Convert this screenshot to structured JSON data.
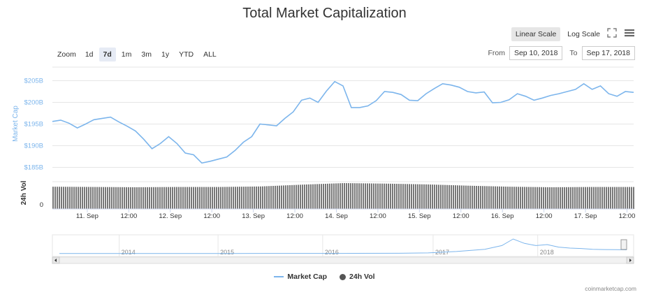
{
  "title": "Total Market Capitalization",
  "toolbar": {
    "linear_label": "Linear Scale",
    "log_label": "Log Scale",
    "fullscreen_icon": "fullscreen-icon",
    "menu_icon": "hamburger-menu-icon"
  },
  "zoom": {
    "label": "Zoom",
    "buttons": [
      "1d",
      "7d",
      "1m",
      "3m",
      "1y",
      "YTD",
      "ALL"
    ],
    "active": "7d"
  },
  "range": {
    "from_label": "From",
    "from_value": "Sep 10, 2018",
    "to_label": "To",
    "to_value": "Sep 17, 2018"
  },
  "chart_data": {
    "type": "line",
    "ylabel": "Market Cap",
    "vol_label": "24h Vol",
    "y_ticks": [
      "$185B",
      "$190B",
      "$195B",
      "$200B",
      "$205B"
    ],
    "y_tick_values": [
      185,
      190,
      195,
      200,
      205
    ],
    "ylim": [
      182.5,
      207.5
    ],
    "vol_tick": "0",
    "x_ticks": [
      "11. Sep",
      "12:00",
      "12. Sep",
      "12:00",
      "13. Sep",
      "12:00",
      "14. Sep",
      "12:00",
      "15. Sep",
      "12:00",
      "16. Sep",
      "12:00",
      "17. Sep",
      "12:00"
    ],
    "xlim": [
      0,
      7.0
    ],
    "x_tick_positions": [
      0.42,
      0.92,
      1.42,
      1.92,
      2.42,
      2.92,
      3.42,
      3.92,
      4.42,
      4.92,
      5.42,
      5.92,
      6.42,
      6.92
    ],
    "series": [
      {
        "name": "Market Cap",
        "color": "#7cb5ec",
        "x": [
          0.0,
          0.1,
          0.2,
          0.3,
          0.4,
          0.5,
          0.6,
          0.7,
          0.8,
          0.9,
          1.0,
          1.1,
          1.2,
          1.3,
          1.4,
          1.5,
          1.6,
          1.7,
          1.8,
          1.9,
          2.0,
          2.1,
          2.2,
          2.3,
          2.4,
          2.5,
          2.6,
          2.7,
          2.8,
          2.9,
          3.0,
          3.1,
          3.2,
          3.3,
          3.4,
          3.5,
          3.6,
          3.7,
          3.8,
          3.9,
          4.0,
          4.1,
          4.2,
          4.3,
          4.4,
          4.5,
          4.6,
          4.7,
          4.8,
          4.9,
          5.0,
          5.1,
          5.2,
          5.3,
          5.4,
          5.5,
          5.6,
          5.7,
          5.8,
          5.9,
          6.0,
          6.1,
          6.2,
          6.3,
          6.4,
          6.5,
          6.6,
          6.7,
          6.8,
          6.9,
          7.0
        ],
        "values": [
          195.6,
          195.9,
          195.2,
          194.1,
          195.0,
          196.0,
          196.3,
          196.6,
          195.5,
          194.5,
          193.4,
          191.5,
          189.3,
          190.5,
          192.1,
          190.5,
          188.3,
          187.9,
          186.0,
          186.4,
          186.9,
          187.4,
          188.9,
          190.8,
          192.1,
          195.0,
          194.8,
          194.6,
          196.3,
          197.8,
          200.5,
          201.0,
          200.0,
          202.6,
          204.8,
          203.8,
          198.8,
          198.8,
          199.2,
          200.4,
          202.5,
          202.3,
          201.8,
          200.5,
          200.4,
          202.0,
          203.2,
          204.3,
          204.0,
          203.5,
          202.5,
          202.2,
          202.4,
          199.9,
          200.0,
          200.6,
          202.0,
          201.4,
          200.5,
          201.0,
          201.6,
          202.0,
          202.5,
          203.0,
          204.3,
          203.0,
          203.8,
          202.0,
          201.4,
          202.5,
          202.3
        ]
      },
      {
        "name": "24h Vol",
        "color": "#555555",
        "x": [
          0.0,
          0.5,
          1.0,
          1.5,
          2.0,
          2.5,
          3.0,
          3.5,
          4.0,
          4.5,
          5.0,
          5.5,
          6.0,
          6.5,
          7.0
        ],
        "values": [
          0.86,
          0.85,
          0.84,
          0.85,
          0.85,
          0.87,
          0.94,
          1.0,
          0.98,
          0.95,
          0.9,
          0.86,
          0.84,
          0.85,
          0.85
        ]
      }
    ],
    "navigator": {
      "year_labels": [
        "2014",
        "2015",
        "2016",
        "2017",
        "2018"
      ],
      "year_fractions": [
        0.115,
        0.285,
        0.465,
        0.655,
        0.835
      ],
      "x": [
        0,
        0.1,
        0.2,
        0.3,
        0.4,
        0.5,
        0.6,
        0.65,
        0.7,
        0.75,
        0.78,
        0.8,
        0.82,
        0.84,
        0.86,
        0.88,
        0.9,
        0.92,
        0.94,
        0.96,
        0.98,
        1.0
      ],
      "values": [
        0.01,
        0.01,
        0.01,
        0.01,
        0.02,
        0.02,
        0.03,
        0.05,
        0.15,
        0.3,
        0.55,
        1.0,
        0.7,
        0.55,
        0.62,
        0.45,
        0.38,
        0.35,
        0.3,
        0.28,
        0.27,
        0.26
      ]
    },
    "grid": true,
    "legend": "bottom-center"
  },
  "legend": {
    "cap_label": "Market Cap",
    "vol_label": "24h Vol"
  },
  "credit": "coinmarketcap.com"
}
